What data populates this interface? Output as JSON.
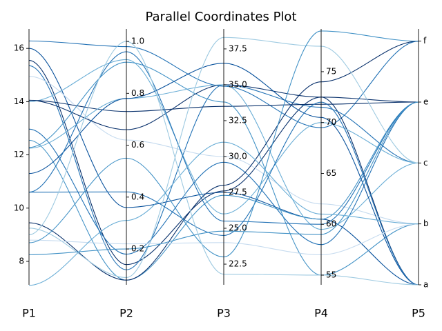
{
  "chart_data": {
    "type": "parallel",
    "title": "Parallel Coordinates Plot",
    "axes": [
      {
        "name": "P1",
        "ylim": [
          7.12,
          16.73
        ],
        "yticks": [
          8,
          10,
          12,
          14,
          16
        ]
      },
      {
        "name": "P2",
        "ylim": [
          0.062,
          1.048
        ],
        "yticks": [
          0.2,
          0.4,
          0.6,
          0.8,
          {
            "value": 1,
            "label": "1.0"
          }
        ]
      },
      {
        "name": "P3",
        "ylim": [
          21.06,
          38.89
        ],
        "yticks": [
          22.5,
          {
            "value": 25,
            "label": "25.0"
          },
          27.5,
          {
            "value": 30,
            "label": "30.0"
          },
          32.5,
          {
            "value": 35,
            "label": "35.0"
          },
          37.5
        ]
      },
      {
        "name": "P4",
        "ylim": [
          54.05,
          79.2
        ],
        "yticks": [
          55,
          60,
          65,
          70,
          75
        ]
      },
      {
        "name": "P5",
        "ylim": [
          0,
          4.2
        ],
        "yticks": [
          {
            "value": 0,
            "label": "a"
          },
          {
            "value": 1,
            "label": "b"
          },
          {
            "value": 2,
            "label": "c"
          },
          {
            "value": 3,
            "label": "e"
          },
          {
            "value": 4,
            "label": "f"
          }
        ]
      }
    ],
    "series": [
      {
        "color": "#2171b5",
        "values": [
          16.28,
          0.98,
          34.9,
          69.5,
          4
        ]
      },
      {
        "color": "#08519c",
        "values": [
          16.0,
          0.36,
          27.5,
          60.5,
          0
        ]
      },
      {
        "color": "#08306b",
        "values": [
          15.55,
          0.14,
          27.6,
          72.5,
          0
        ]
      },
      {
        "color": "#2171b5",
        "values": [
          15.35,
          0.12,
          35.0,
          71.5,
          2
        ]
      },
      {
        "color": "#c6dbef",
        "values": [
          14.95,
          0.62,
          30.0,
          62.0,
          1
        ]
      },
      {
        "color": "#08306b",
        "values": [
          14.05,
          0.66,
          35.0,
          72.5,
          3
        ]
      },
      {
        "color": "#6baed6",
        "values": [
          14.0,
          0.93,
          26.0,
          70.0,
          2
        ]
      },
      {
        "color": "#08306b",
        "values": [
          14.05,
          0.73,
          33.5,
          71.8,
          3
        ]
      },
      {
        "color": "#2171b5",
        "values": [
          12.97,
          0.18,
          29.6,
          58.0,
          3
        ]
      },
      {
        "color": "#4292c6",
        "values": [
          12.55,
          0.08,
          27.3,
          60.5,
          3
        ]
      },
      {
        "color": "#4292c6",
        "values": [
          12.28,
          0.92,
          33.8,
          55.0,
          1
        ]
      },
      {
        "color": "#6baed6",
        "values": [
          12.25,
          0.78,
          35.0,
          59.5,
          2
        ]
      },
      {
        "color": "#08519c",
        "values": [
          11.3,
          0.78,
          36.5,
          70.5,
          0
        ]
      },
      {
        "color": "#2171b5",
        "values": [
          10.6,
          0.42,
          24.5,
          72.0,
          0
        ]
      },
      {
        "color": "#2171b5",
        "values": [
          10.6,
          0.96,
          25.5,
          60.0,
          3
        ]
      },
      {
        "color": "#08306b",
        "values": [
          9.45,
          0.08,
          28.0,
          74.0,
          4
        ]
      },
      {
        "color": "#9ecae1",
        "values": [
          9.25,
          0.09,
          38.3,
          77.5,
          2
        ]
      },
      {
        "color": "#c6dbef",
        "values": [
          8.8,
          0.22,
          24.0,
          57.0,
          1
        ]
      },
      {
        "color": "#4292c6",
        "values": [
          8.25,
          0.2,
          24.8,
          59.0,
          3
        ]
      },
      {
        "color": "#6baed6",
        "values": [
          7.1,
          0.31,
          31.0,
          61.0,
          1
        ]
      },
      {
        "color": "#4292c6",
        "values": [
          8.7,
          0.55,
          23.0,
          79.0,
          4
        ]
      },
      {
        "color": "#9ecae1",
        "values": [
          9.0,
          1.0,
          21.8,
          55.0,
          0
        ]
      }
    ]
  }
}
